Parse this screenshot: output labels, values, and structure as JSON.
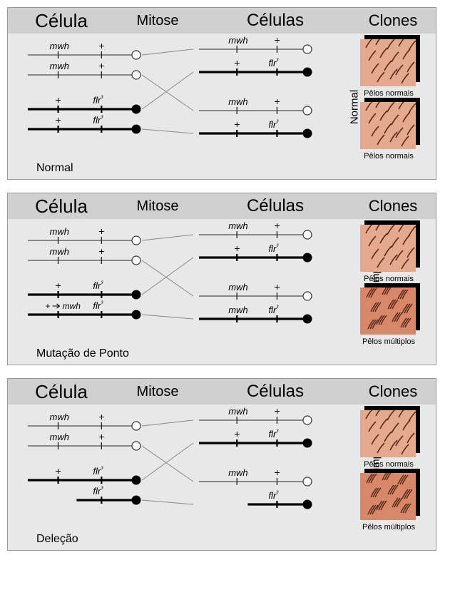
{
  "headers": {
    "celula": "Célula",
    "mitose": "Mitose",
    "celulas": "Células",
    "clones": "Clones"
  },
  "genes": {
    "mwh": "mwh",
    "flr3_base": "flr",
    "flr3_sup": "³",
    "plus": "+"
  },
  "colors": {
    "panel_bg": "#e8e8e8",
    "header_bg": "#d0d0d0",
    "chromo_thin": "#2a2a2a",
    "chromo_thick": "#000000",
    "centro_open_fill": "#ffffff",
    "centro_open_stroke": "#333333",
    "centro_filled": "#000000",
    "cross_line": "#888888",
    "skin_normal": "#e5a98f",
    "skin_abnormal": "#d9876b",
    "hair_color": "#5a2e1a",
    "shadow": "#000000"
  },
  "panels": [
    {
      "mechanism": "Normal",
      "clone_vertical_label": "Normal",
      "left_cell": {
        "pair1": [
          {
            "thick": false,
            "markers": [
              {
                "label": "mwh",
                "pos": 0.28
              },
              {
                "label": "+",
                "pos": 0.68
              }
            ],
            "centro": "open"
          },
          {
            "thick": false,
            "markers": [
              {
                "label": "mwh",
                "pos": 0.28
              },
              {
                "label": "+",
                "pos": 0.68
              }
            ],
            "centro": "open"
          }
        ],
        "pair2": [
          {
            "thick": true,
            "markers": [
              {
                "label": "+",
                "pos": 0.28
              },
              {
                "label": "flr3",
                "pos": 0.68
              }
            ],
            "centro": "filled"
          },
          {
            "thick": true,
            "markers": [
              {
                "label": "+",
                "pos": 0.28
              },
              {
                "label": "flr3",
                "pos": 0.68
              }
            ],
            "centro": "filled"
          }
        ]
      },
      "right_cells": [
        {
          "top": {
            "thick": false,
            "markers": [
              {
                "label": "mwh",
                "pos": 0.35
              },
              {
                "label": "+",
                "pos": 0.72
              }
            ],
            "centro": "open"
          },
          "bot": {
            "thick": true,
            "markers": [
              {
                "label": "+",
                "pos": 0.35
              },
              {
                "label": "flr3",
                "pos": 0.72
              }
            ],
            "centro": "filled"
          }
        },
        {
          "top": {
            "thick": false,
            "markers": [
              {
                "label": "mwh",
                "pos": 0.35
              },
              {
                "label": "+",
                "pos": 0.72
              }
            ],
            "centro": "open"
          },
          "bot": {
            "thick": true,
            "markers": [
              {
                "label": "+",
                "pos": 0.35
              },
              {
                "label": "flr3",
                "pos": 0.72
              }
            ],
            "centro": "filled"
          }
        }
      ],
      "thumbs": [
        {
          "type": "normal",
          "caption": "Pêlos normais"
        },
        {
          "type": "normal",
          "caption": "Pêlos normais"
        }
      ]
    },
    {
      "mechanism": "Mutação de Ponto",
      "clone_vertical_label": "Mancha simples",
      "mutation_arrow": {
        "from": "+",
        "to": "mwh",
        "chromo": "pair2_bot"
      },
      "left_cell": {
        "pair1": [
          {
            "thick": false,
            "markers": [
              {
                "label": "mwh",
                "pos": 0.28
              },
              {
                "label": "+",
                "pos": 0.68
              }
            ],
            "centro": "open"
          },
          {
            "thick": false,
            "markers": [
              {
                "label": "mwh",
                "pos": 0.28
              },
              {
                "label": "+",
                "pos": 0.68
              }
            ],
            "centro": "open"
          }
        ],
        "pair2": [
          {
            "thick": true,
            "markers": [
              {
                "label": "+",
                "pos": 0.28
              },
              {
                "label": "flr3",
                "pos": 0.68
              }
            ],
            "centro": "filled"
          },
          {
            "thick": true,
            "markers": [
              {
                "label": "+>mwh",
                "pos": 0.28
              },
              {
                "label": "flr3",
                "pos": 0.68
              }
            ],
            "centro": "filled"
          }
        ]
      },
      "right_cells": [
        {
          "top": {
            "thick": false,
            "markers": [
              {
                "label": "mwh",
                "pos": 0.35
              },
              {
                "label": "+",
                "pos": 0.72
              }
            ],
            "centro": "open"
          },
          "bot": {
            "thick": true,
            "markers": [
              {
                "label": "+",
                "pos": 0.35
              },
              {
                "label": "flr3",
                "pos": 0.72
              }
            ],
            "centro": "filled"
          }
        },
        {
          "top": {
            "thick": false,
            "markers": [
              {
                "label": "mwh",
                "pos": 0.35
              },
              {
                "label": "+",
                "pos": 0.72
              }
            ],
            "centro": "open"
          },
          "bot": {
            "thick": true,
            "markers": [
              {
                "label": "mwh",
                "pos": 0.35
              },
              {
                "label": "flr3",
                "pos": 0.72
              }
            ],
            "centro": "filled"
          }
        }
      ],
      "thumbs": [
        {
          "type": "normal",
          "caption": "Pêlos normais"
        },
        {
          "type": "multiple",
          "caption": "Pêlos múltiplos"
        }
      ]
    },
    {
      "mechanism": "Deleção",
      "clone_vertical_label": "Mancha simples",
      "left_cell": {
        "pair1": [
          {
            "thick": false,
            "markers": [
              {
                "label": "mwh",
                "pos": 0.28
              },
              {
                "label": "+",
                "pos": 0.68
              }
            ],
            "centro": "open"
          },
          {
            "thick": false,
            "markers": [
              {
                "label": "mwh",
                "pos": 0.28
              },
              {
                "label": "+",
                "pos": 0.68
              }
            ],
            "centro": "open"
          }
        ],
        "pair2": [
          {
            "thick": true,
            "markers": [
              {
                "label": "+",
                "pos": 0.28
              },
              {
                "label": "flr3",
                "pos": 0.68
              }
            ],
            "centro": "filled"
          },
          {
            "thick": true,
            "deleted_left": 0.45,
            "markers": [
              {
                "label": "flr3",
                "pos": 0.68
              }
            ],
            "centro": "filled"
          }
        ]
      },
      "right_cells": [
        {
          "top": {
            "thick": false,
            "markers": [
              {
                "label": "mwh",
                "pos": 0.35
              },
              {
                "label": "+",
                "pos": 0.72
              }
            ],
            "centro": "open"
          },
          "bot": {
            "thick": true,
            "markers": [
              {
                "label": "+",
                "pos": 0.35
              },
              {
                "label": "flr3",
                "pos": 0.72
              }
            ],
            "centro": "filled"
          }
        },
        {
          "top": {
            "thick": false,
            "markers": [
              {
                "label": "mwh",
                "pos": 0.35
              },
              {
                "label": "+",
                "pos": 0.72
              }
            ],
            "centro": "open"
          },
          "bot": {
            "thick": true,
            "deleted_left": 0.45,
            "markers": [
              {
                "label": "flr3",
                "pos": 0.72
              }
            ],
            "centro": "filled"
          }
        }
      ],
      "thumbs": [
        {
          "type": "normal",
          "caption": "Pêlos normais"
        },
        {
          "type": "multiple",
          "caption": "Pêlos múltiplos"
        }
      ]
    }
  ]
}
